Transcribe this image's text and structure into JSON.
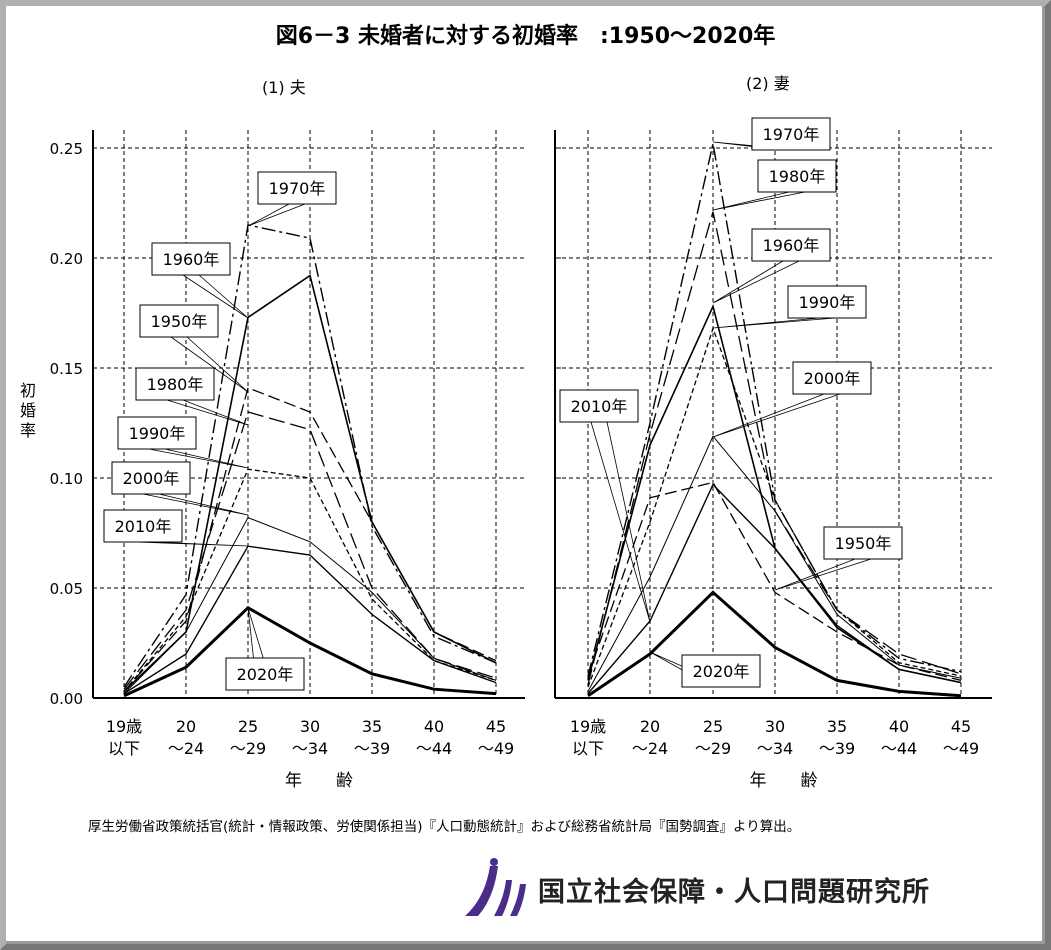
{
  "title": "図6－3 未婚者に対する初婚率　:1950～2020年",
  "source_note": "厚生労働省政策統括官(統計・情報政策、労使関係担当)『人口動態統計』および総務省統計局『国勢調査』より算出。",
  "logo_text": "国立社会保障・人口問題研究所",
  "chart_data": [
    {
      "type": "line",
      "title": "(1) 夫",
      "ylabel": "初婚率",
      "xlabel": "年　　齢",
      "ylim": [
        0,
        0.25
      ],
      "yticks": [
        "0.00",
        "0.05",
        "0.10",
        "0.15",
        "0.20",
        "0.25"
      ],
      "grid": true,
      "categories": [
        [
          "19歳",
          "以下"
        ],
        [
          "20",
          "～24"
        ],
        [
          "25",
          "～29"
        ],
        [
          "30",
          "～34"
        ],
        [
          "35",
          "～39"
        ],
        [
          "40",
          "～44"
        ],
        [
          "45",
          "～49"
        ]
      ],
      "series": [
        {
          "name": "1950年",
          "values": [
            0.003,
            0.035,
            0.141,
            0.13,
            0.08,
            0.03,
            0.017
          ]
        },
        {
          "name": "1960年",
          "values": [
            0.003,
            0.03,
            0.173,
            0.192,
            0.08,
            0.03,
            0.016
          ]
        },
        {
          "name": "1970年",
          "values": [
            0.005,
            0.047,
            0.215,
            0.209,
            0.078,
            0.028,
            0.016
          ]
        },
        {
          "name": "1980年",
          "values": [
            0.004,
            0.04,
            0.13,
            0.122,
            0.05,
            0.018,
            0.009
          ]
        },
        {
          "name": "1990年",
          "values": [
            0.003,
            0.037,
            0.104,
            0.1,
            0.045,
            0.017,
            0.008
          ]
        },
        {
          "name": "2000年",
          "values": [
            0.002,
            0.03,
            0.082,
            0.071,
            0.048,
            0.018,
            0.008
          ]
        },
        {
          "name": "2010年",
          "values": [
            0.002,
            0.02,
            0.069,
            0.065,
            0.038,
            0.017,
            0.007
          ]
        },
        {
          "name": "2020年",
          "values": [
            0.001,
            0.014,
            0.041,
            0.025,
            0.011,
            0.004,
            0.002
          ]
        }
      ]
    },
    {
      "type": "line",
      "title": "(2) 妻",
      "ylabel": "",
      "xlabel": "年　　齢",
      "ylim": [
        0,
        0.25
      ],
      "grid": true,
      "categories": [
        [
          "19歳",
          "以下"
        ],
        [
          "20",
          "～24"
        ],
        [
          "25",
          "～29"
        ],
        [
          "30",
          "～34"
        ],
        [
          "35",
          "～39"
        ],
        [
          "40",
          "～44"
        ],
        [
          "45",
          "～49"
        ]
      ],
      "series": [
        {
          "name": "1950年",
          "values": [
            0.01,
            0.091,
            0.098,
            0.048,
            0.03,
            0.015,
            0.008
          ]
        },
        {
          "name": "1960年",
          "values": [
            0.008,
            0.115,
            0.178,
            0.068,
            0.032,
            0.013,
            0.007
          ]
        },
        {
          "name": "1970年",
          "values": [
            0.01,
            0.125,
            0.252,
            0.09,
            0.04,
            0.018,
            0.012
          ]
        },
        {
          "name": "1980年",
          "values": [
            0.006,
            0.12,
            0.221,
            0.085,
            0.04,
            0.02,
            0.011
          ]
        },
        {
          "name": "1990年",
          "values": [
            0.005,
            0.08,
            0.168,
            0.09,
            0.04,
            0.016,
            0.01
          ]
        },
        {
          "name": "2000年",
          "values": [
            0.003,
            0.055,
            0.119,
            0.085,
            0.038,
            0.015,
            0.009
          ]
        },
        {
          "name": "2010年",
          "values": [
            0.002,
            0.035,
            0.097,
            0.068,
            0.033,
            0.013,
            0.007
          ]
        },
        {
          "name": "2020年",
          "values": [
            0.001,
            0.02,
            0.048,
            0.023,
            0.008,
            0.003,
            0.001
          ]
        }
      ]
    }
  ]
}
